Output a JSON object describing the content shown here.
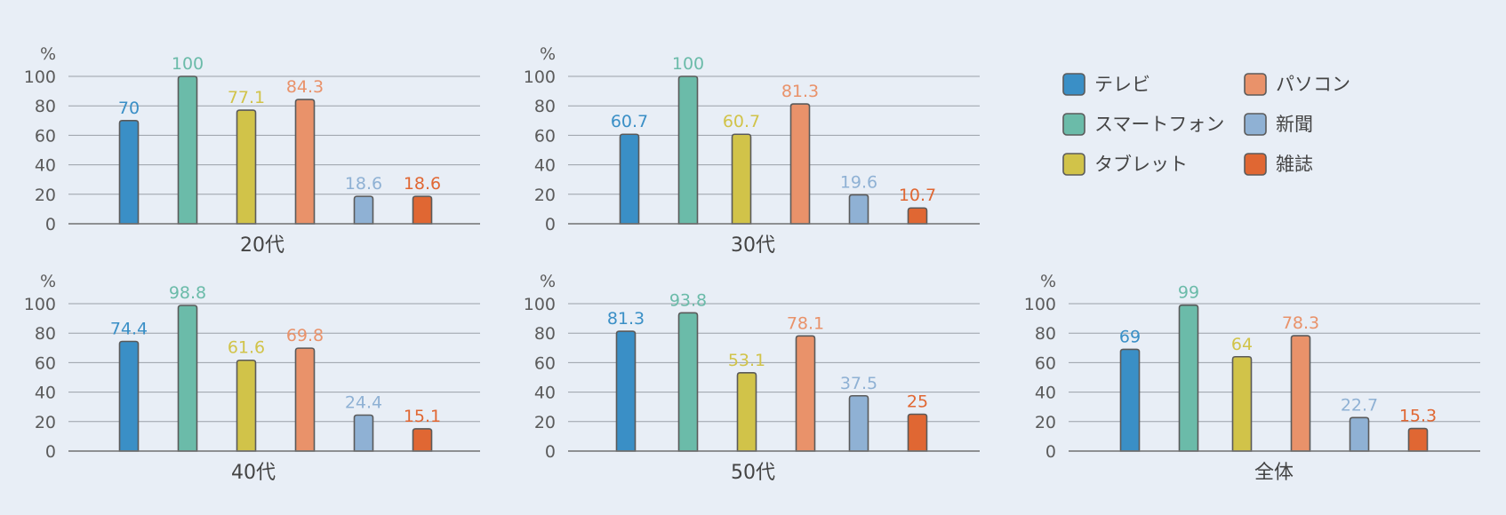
{
  "chart_data": [
    {
      "type": "bar",
      "title": "20代",
      "unit": "%",
      "categories": [
        "テレビ",
        "スマートフォン",
        "タブレット",
        "パソコン",
        "新聞",
        "雑誌"
      ],
      "values": [
        70,
        100,
        77.1,
        84.3,
        18.6,
        18.6
      ],
      "ylim": [
        0,
        100
      ],
      "yticks": [
        "0",
        "20",
        "40",
        "60",
        "80",
        "100"
      ],
      "grid": true
    },
    {
      "type": "bar",
      "title": "30代",
      "unit": "%",
      "categories": [
        "テレビ",
        "スマートフォン",
        "タブレット",
        "パソコン",
        "新聞",
        "雑誌"
      ],
      "values": [
        60.7,
        100,
        60.7,
        81.3,
        19.6,
        10.7
      ],
      "ylim": [
        0,
        100
      ],
      "yticks": [
        "0",
        "20",
        "40",
        "60",
        "80",
        "100"
      ],
      "grid": true
    },
    {
      "type": "bar",
      "title": "40代",
      "unit": "%",
      "categories": [
        "テレビ",
        "スマートフォン",
        "タブレット",
        "パソコン",
        "新聞",
        "雑誌"
      ],
      "values": [
        74.4,
        98.8,
        61.6,
        69.8,
        24.4,
        15.1
      ],
      "ylim": [
        0,
        100
      ],
      "yticks": [
        "0",
        "20",
        "40",
        "60",
        "80",
        "100"
      ],
      "grid": true
    },
    {
      "type": "bar",
      "title": "50代",
      "unit": "%",
      "categories": [
        "テレビ",
        "スマートフォン",
        "タブレット",
        "パソコン",
        "新聞",
        "雑誌"
      ],
      "values": [
        81.3,
        93.8,
        53.1,
        78.1,
        37.5,
        25
      ],
      "ylim": [
        0,
        100
      ],
      "yticks": [
        "0",
        "20",
        "40",
        "60",
        "80",
        "100"
      ],
      "grid": true
    },
    {
      "type": "bar",
      "title": "全体",
      "unit": "%",
      "categories": [
        "テレビ",
        "スマートフォン",
        "タブレット",
        "パソコン",
        "新聞",
        "雑誌"
      ],
      "values": [
        69,
        99,
        64,
        78.3,
        22.7,
        15.3
      ],
      "ylim": [
        0,
        100
      ],
      "yticks": [
        "0",
        "20",
        "40",
        "60",
        "80",
        "100"
      ],
      "grid": true
    }
  ],
  "legend": {
    "placement": "top-right",
    "items": [
      {
        "label": "テレビ",
        "color": "#3a8fc6"
      },
      {
        "label": "スマートフォン",
        "color": "#6bbba9"
      },
      {
        "label": "タブレット",
        "color": "#d1c349"
      },
      {
        "label": "パソコン",
        "color": "#e9926a"
      },
      {
        "label": "新聞",
        "color": "#8fb1d4"
      },
      {
        "label": "雑誌",
        "color": "#e06733"
      }
    ]
  },
  "colors": {
    "background": "#e8eef6",
    "bar_outline": "#5a5a5a",
    "grid": "#9aa0a8",
    "text": "#444444"
  }
}
